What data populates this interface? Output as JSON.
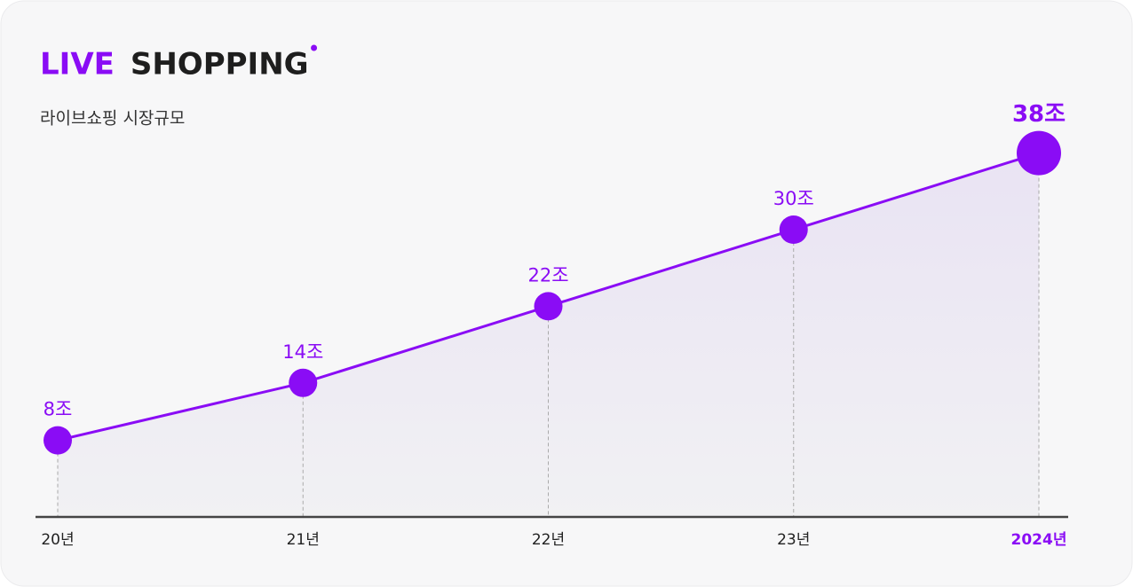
{
  "chart_data": {
    "type": "line",
    "title_accent": "LIVE",
    "title": "SHOPPING",
    "subtitle": "라이브쇼핑 시장규모",
    "categories": [
      "20년",
      "21년",
      "22년",
      "23년",
      "2024년"
    ],
    "values": [
      8,
      14,
      22,
      30,
      38
    ],
    "value_labels": [
      "8조",
      "14조",
      "22조",
      "30조",
      "38조"
    ],
    "color": "#8a0cf5",
    "ylim": [
      0,
      40
    ],
    "highlight_index": 4,
    "area": true
  }
}
